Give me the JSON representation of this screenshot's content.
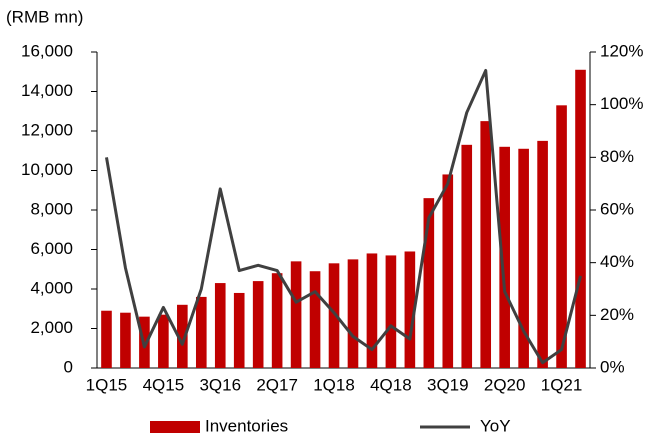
{
  "chart_data": {
    "type": "bar-line",
    "y_axis_label": "(RMB mn)",
    "categories": [
      "1Q15",
      null,
      null,
      "4Q15",
      null,
      null,
      "3Q16",
      null,
      null,
      "2Q17",
      null,
      null,
      "1Q18",
      null,
      null,
      "4Q18",
      null,
      null,
      "3Q19",
      null,
      null,
      "2Q20",
      null,
      null,
      "1Q21",
      null
    ],
    "series": [
      {
        "name": "Inventories",
        "type": "bar",
        "color": "#c00000",
        "values": [
          2900,
          2800,
          2600,
          2700,
          3200,
          3600,
          4300,
          3800,
          4400,
          4800,
          5400,
          4900,
          5300,
          5500,
          5800,
          5700,
          5900,
          8600,
          9800,
          11300,
          12500,
          11200,
          11100,
          11500,
          13300,
          15100
        ]
      },
      {
        "name": "YoY",
        "type": "line",
        "axis": "y2",
        "color": "#404040",
        "values": [
          80,
          38,
          8,
          23,
          9,
          30,
          68,
          37,
          39,
          37,
          25,
          29,
          21,
          12,
          7,
          16,
          11,
          57,
          70,
          97,
          113,
          29,
          14,
          2,
          7,
          35
        ]
      }
    ],
    "ylim": [
      0,
      16000
    ],
    "yticks": [
      0,
      {
        "value": 2000,
        "label": "2,000"
      },
      {
        "value": 4000,
        "label": "4,000"
      },
      {
        "value": 6000,
        "label": "6,000"
      },
      {
        "value": 8000,
        "label": "8,000"
      },
      {
        "value": 10000,
        "label": "10,000"
      },
      {
        "value": 12000,
        "label": "12,000"
      },
      {
        "value": 14000,
        "label": "14,000"
      },
      {
        "value": 16000,
        "label": "16,000"
      }
    ],
    "y2lim": [
      0,
      120
    ],
    "y2ticks": [
      {
        "value": 0,
        "label": "0%"
      },
      {
        "value": 20,
        "label": "20%"
      },
      {
        "value": 40,
        "label": "40%"
      },
      {
        "value": 60,
        "label": "60%"
      },
      {
        "value": 80,
        "label": "80%"
      },
      {
        "value": 100,
        "label": "100%"
      },
      {
        "value": 120,
        "label": "120%"
      }
    ],
    "legend": "bottom"
  }
}
